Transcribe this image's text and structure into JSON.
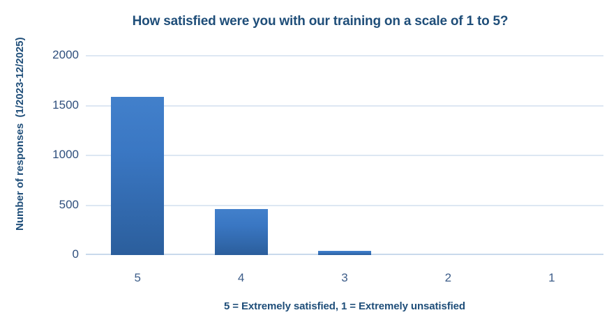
{
  "chart_data": {
    "type": "bar",
    "title": "How satisfied were you with our training on a scale of 1 to 5?",
    "ylabel": "Number of responses  (1/2023-12/2025)",
    "xlabel": "5 = Extremely satisfied, 1 = Extremely unsatisfied",
    "categories": [
      "5",
      "4",
      "3",
      "2",
      "1"
    ],
    "values": [
      1590,
      460,
      40,
      0,
      0
    ],
    "yticks": [
      0,
      500,
      1000,
      1500,
      2000
    ],
    "ylim": [
      0,
      2140
    ],
    "grid": true,
    "legend_position": "none",
    "colors": {
      "bar_top": "#4280cb",
      "bar_bottom": "#2b5e9c",
      "title_text": "#1f4e79",
      "axis_label_text": "#1f4e79",
      "ytick_text": "#2f4f7d",
      "xtick_text": "#3d5d89",
      "gridline": "#dde7f3",
      "baseline": "#c9d9ec",
      "background": "#ffffff"
    }
  }
}
